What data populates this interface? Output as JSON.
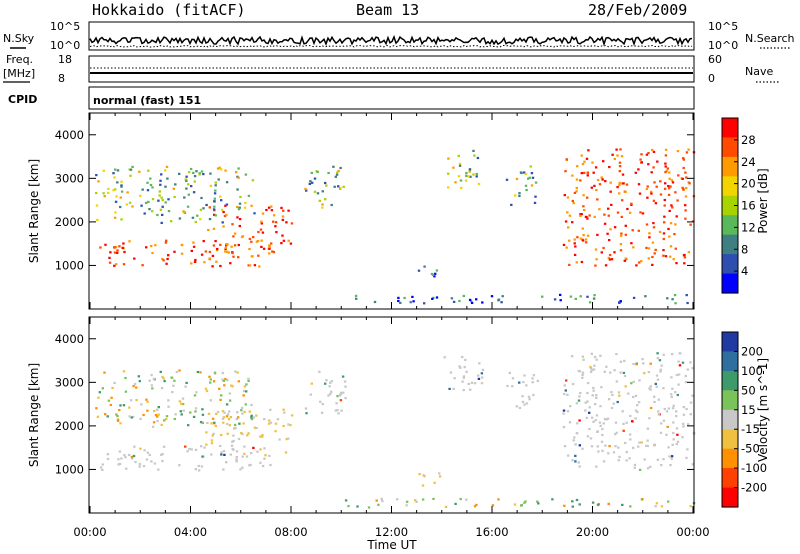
{
  "header": {
    "station": "Hokkaido (fitACF)",
    "beam": "Beam 13",
    "date": "28/Feb/2009"
  },
  "strips": {
    "nsky_label": "N.Sky",
    "nsky_ticks": [
      "10^5",
      "10^0"
    ],
    "nsearch_label": "N.Search",
    "nsearch_ticks": [
      "10^5",
      "10^0"
    ],
    "freq_label": "Freq.",
    "freq_unit": "[MHz]",
    "freq_ticks": [
      "18",
      "8"
    ],
    "nave_label": "Nave",
    "nave_ticks": [
      "60",
      "0"
    ],
    "cpid_label": "CPID",
    "cpid_value": "normal (fast) 151"
  },
  "chart_data": [
    {
      "type": "heatmap",
      "panel": "power",
      "ylabel": "Slant Range [km]",
      "ylim": [
        0,
        4500
      ],
      "yticks": [
        "4000",
        "3000",
        "2000",
        "1000"
      ],
      "xlim_hours": [
        0,
        24
      ],
      "colorbar_label": "Power [dB]",
      "colorbar_ticks": [
        "28",
        "24",
        "20",
        "16",
        "12",
        "8",
        "4"
      ],
      "colorbar_colors": [
        "#ff0000",
        "#ff4a00",
        "#ff9a00",
        "#f2d400",
        "#a8d200",
        "#58b85a",
        "#3f7f82",
        "#2f4fb0",
        "#0000ff"
      ],
      "regions": [
        {
          "t0": 0.3,
          "t1": 7.2,
          "r0": 1000,
          "r1": 1600,
          "level": "high"
        },
        {
          "t0": 4.5,
          "t1": 8.0,
          "r0": 1300,
          "r1": 2400,
          "level": "high"
        },
        {
          "t0": 0.2,
          "t1": 6.5,
          "r0": 2000,
          "r1": 3300,
          "level": "mid"
        },
        {
          "t0": 8.5,
          "t1": 10.2,
          "r0": 2300,
          "r1": 3300,
          "level": "mid"
        },
        {
          "t0": 14.0,
          "t1": 15.6,
          "r0": 2800,
          "r1": 3700,
          "level": "mid"
        },
        {
          "t0": 16.5,
          "t1": 17.8,
          "r0": 2400,
          "r1": 3300,
          "level": "mid"
        },
        {
          "t0": 18.8,
          "t1": 24.0,
          "r0": 1000,
          "r1": 3700,
          "level": "high"
        },
        {
          "t0": 13.0,
          "t1": 14.0,
          "r0": 600,
          "r1": 1000,
          "level": "low"
        },
        {
          "t0": 10.0,
          "t1": 24.0,
          "r0": 150,
          "r1": 350,
          "level": "low"
        }
      ]
    },
    {
      "type": "heatmap",
      "panel": "velocity",
      "ylabel": "Slant Range [km]",
      "ylim": [
        0,
        4500
      ],
      "yticks": [
        "4000",
        "3000",
        "2000",
        "1000"
      ],
      "xlim_hours": [
        0,
        24
      ],
      "colorbar_label": "Velocity [m s^-1]",
      "colorbar_ticks": [
        "200",
        "100",
        "50",
        "15",
        "-15",
        "-50",
        "-100",
        "-200"
      ],
      "colorbar_colors": [
        "#1f3aa0",
        "#2f6fa0",
        "#3d9a6a",
        "#7ac25a",
        "#c8c8c8",
        "#f0c040",
        "#ff9000",
        "#ff4000",
        "#ff0000"
      ],
      "regions": [
        {
          "t0": 0.3,
          "t1": 7.2,
          "r0": 1000,
          "r1": 1600,
          "level": "grey"
        },
        {
          "t0": 4.5,
          "t1": 8.0,
          "r0": 1300,
          "r1": 2400,
          "level": "orange"
        },
        {
          "t0": 0.2,
          "t1": 6.5,
          "r0": 2000,
          "r1": 3300,
          "level": "mix"
        },
        {
          "t0": 8.5,
          "t1": 10.2,
          "r0": 2300,
          "r1": 3300,
          "level": "grey"
        },
        {
          "t0": 14.0,
          "t1": 15.6,
          "r0": 2800,
          "r1": 3700,
          "level": "grey"
        },
        {
          "t0": 16.5,
          "t1": 17.8,
          "r0": 2400,
          "r1": 3300,
          "level": "grey"
        },
        {
          "t0": 18.8,
          "t1": 24.0,
          "r0": 1000,
          "r1": 3700,
          "level": "grey"
        },
        {
          "t0": 13.0,
          "t1": 14.0,
          "r0": 600,
          "r1": 1000,
          "level": "orange"
        },
        {
          "t0": 10.0,
          "t1": 24.0,
          "r0": 150,
          "r1": 350,
          "level": "mix"
        }
      ]
    }
  ],
  "xaxis": {
    "ticks": [
      "00:00",
      "04:00",
      "08:00",
      "12:00",
      "16:00",
      "20:00",
      "00:00"
    ],
    "label": "Time UT"
  }
}
